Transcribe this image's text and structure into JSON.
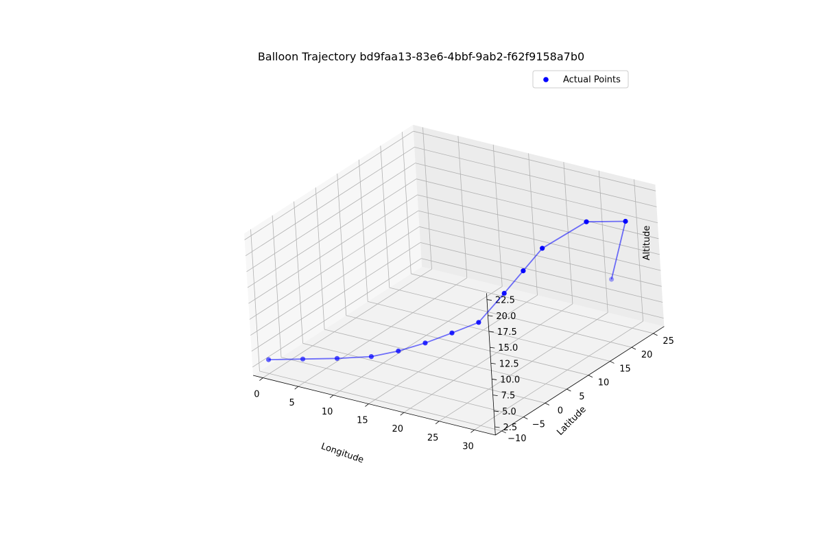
{
  "chart_data": {
    "type": "scatter",
    "projection": "3d",
    "title": "Balloon Trajectory bd9faa13-83e6-4bbf-9ab2-f62f9158a7b0",
    "xlabel": "Longitude",
    "ylabel": "Latitude",
    "zlabel": "Altitude",
    "xticks": [
      "0",
      "5",
      "10",
      "15",
      "20",
      "25",
      "30"
    ],
    "yticks": [
      "−10",
      "−5",
      "0",
      "5",
      "10",
      "15",
      "20",
      "25"
    ],
    "zticks": [
      "2.5",
      "5.0",
      "7.5",
      "10.0",
      "12.5",
      "15.0",
      "17.5",
      "20.0",
      "22.5"
    ],
    "xlim": [
      -1.4,
      33
    ],
    "ylim": [
      -11.5,
      27.5
    ],
    "zlim": [
      1.2,
      23.5
    ],
    "grid": true,
    "legend": {
      "entries": [
        "Actual Points"
      ],
      "placement": "top-right"
    },
    "colors": {
      "points": "#0000ff",
      "line": "#0000ff",
      "pane": "#f2f2f2",
      "grid": "#b0b0b0"
    },
    "series": [
      {
        "name": "Actual Points",
        "style": "markers+line",
        "points": [
          {
            "x": 0,
            "y": -10,
            "z": 3.4
          },
          {
            "x": 3,
            "y": -7,
            "z": 3.0
          },
          {
            "x": 6,
            "y": -4,
            "z": 2.6
          },
          {
            "x": 9,
            "y": -1,
            "z": 2.4
          },
          {
            "x": 11,
            "y": 2,
            "z": 2.5
          },
          {
            "x": 13,
            "y": 5,
            "z": 3.0
          },
          {
            "x": 15,
            "y": 8,
            "z": 3.8
          },
          {
            "x": 17,
            "y": 11,
            "z": 4.7
          },
          {
            "x": 19,
            "y": 14,
            "z": 8.5
          },
          {
            "x": 20,
            "y": 17,
            "z": 11.0
          },
          {
            "x": 21,
            "y": 20,
            "z": 13.5
          },
          {
            "x": 25,
            "y": 24,
            "z": 17.0
          },
          {
            "x": 30,
            "y": 25,
            "z": 18.0
          },
          {
            "x": 32,
            "y": 18,
            "z": 12.5
          }
        ]
      }
    ]
  }
}
